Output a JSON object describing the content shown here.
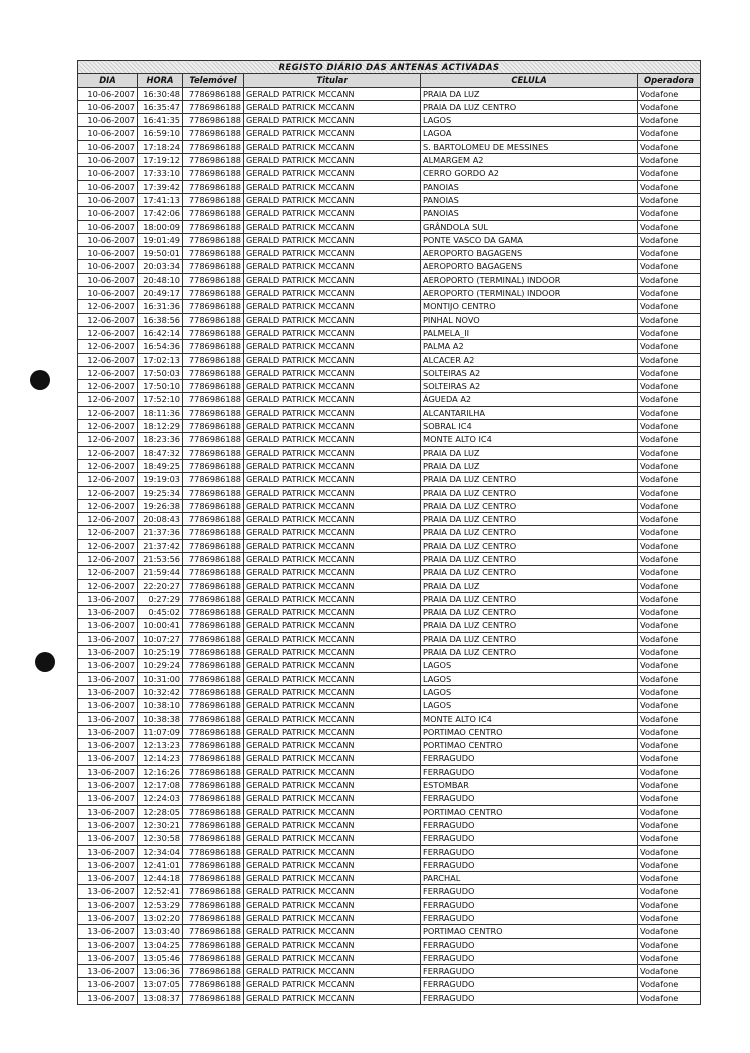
{
  "table": {
    "title": "REGISTO DIÁRIO DAS ANTENAS ACTIVADAS",
    "headers": [
      "DIA",
      "HORA",
      "Telemóvel",
      "Titular",
      "CELULA",
      "Operadora"
    ],
    "rows": [
      [
        "10-06-2007",
        "16:30:48",
        "7786986188",
        "GERALD PATRICK MCCANN",
        "PRAIA DA LUZ",
        "Vodafone"
      ],
      [
        "10-06-2007",
        "16:35:47",
        "7786986188",
        "GERALD PATRICK MCCANN",
        "PRAIA DA LUZ CENTRO",
        "Vodafone"
      ],
      [
        "10-06-2007",
        "16:41:35",
        "7786986188",
        "GERALD PATRICK MCCANN",
        "LAGOS",
        "Vodafone"
      ],
      [
        "10-06-2007",
        "16:59:10",
        "7786986188",
        "GERALD PATRICK MCCANN",
        "LAGOA",
        "Vodafone"
      ],
      [
        "10-06-2007",
        "17:18:24",
        "7786986188",
        "GERALD PATRICK MCCANN",
        "S. BARTOLOMEU DE MESSINES",
        "Vodafone"
      ],
      [
        "10-06-2007",
        "17:19:12",
        "7786986188",
        "GERALD PATRICK MCCANN",
        "ALMARGEM A2",
        "Vodafone"
      ],
      [
        "10-06-2007",
        "17:33:10",
        "7786986188",
        "GERALD PATRICK MCCANN",
        "CERRO GORDO A2",
        "Vodafone"
      ],
      [
        "10-06-2007",
        "17:39:42",
        "7786986188",
        "GERALD PATRICK MCCANN",
        "PANOIAS",
        "Vodafone"
      ],
      [
        "10-06-2007",
        "17:41:13",
        "7786986188",
        "GERALD PATRICK MCCANN",
        "PANOIAS",
        "Vodafone"
      ],
      [
        "10-06-2007",
        "17:42:06",
        "7786986188",
        "GERALD PATRICK MCCANN",
        "PANOIAS",
        "Vodafone"
      ],
      [
        "10-06-2007",
        "18:00:09",
        "7786986188",
        "GERALD PATRICK MCCANN",
        "GRÂNDOLA SUL",
        "Vodafone"
      ],
      [
        "10-06-2007",
        "19:01:49",
        "7786986188",
        "GERALD PATRICK MCCANN",
        "PONTE VASCO DA GAMA",
        "Vodafone"
      ],
      [
        "10-06-2007",
        "19:50:01",
        "7786986188",
        "GERALD PATRICK MCCANN",
        "AEROPORTO BAGAGENS",
        "Vodafone"
      ],
      [
        "10-06-2007",
        "20:03:34",
        "7786986188",
        "GERALD PATRICK MCCANN",
        "AEROPORTO BAGAGENS",
        "Vodafone"
      ],
      [
        "10-06-2007",
        "20:48:10",
        "7786986188",
        "GERALD PATRICK MCCANN",
        "AEROPORTO (TERMINAL) INDOOR",
        "Vodafone"
      ],
      [
        "10-06-2007",
        "20:49:17",
        "7786986188",
        "GERALD PATRICK MCCANN",
        "AEROPORTO (TERMINAL) INDOOR",
        "Vodafone"
      ],
      [
        "12-06-2007",
        "16:31:36",
        "7786986188",
        "GERALD PATRICK MCCANN",
        "MONTIJO CENTRO",
        "Vodafone"
      ],
      [
        "12-06-2007",
        "16:38:56",
        "7786986188",
        "GERALD PATRICK MCCANN",
        "PINHAL NOVO",
        "Vodafone"
      ],
      [
        "12-06-2007",
        "16:42:14",
        "7786986188",
        "GERALD PATRICK MCCANN",
        "PALMELA_II",
        "Vodafone"
      ],
      [
        "12-06-2007",
        "16:54:36",
        "7786986188",
        "GERALD PATRICK MCCANN",
        "PALMA A2",
        "Vodafone"
      ],
      [
        "12-06-2007",
        "17:02:13",
        "7786986188",
        "GERALD PATRICK MCCANN",
        "ALCACER A2",
        "Vodafone"
      ],
      [
        "12-06-2007",
        "17:50:03",
        "7786986188",
        "GERALD PATRICK MCCANN",
        "SOLTEIRAS A2",
        "Vodafone"
      ],
      [
        "12-06-2007",
        "17:50:10",
        "7786986188",
        "GERALD PATRICK MCCANN",
        "SOLTEIRAS A2",
        "Vodafone"
      ],
      [
        "12-06-2007",
        "17:52:10",
        "7786986188",
        "GERALD PATRICK MCCANN",
        "ÁGUEDA A2",
        "Vodafone"
      ],
      [
        "12-06-2007",
        "18:11:36",
        "7786986188",
        "GERALD PATRICK MCCANN",
        "ALCANTARILHA",
        "Vodafone"
      ],
      [
        "12-06-2007",
        "18:12:29",
        "7786986188",
        "GERALD PATRICK MCCANN",
        "SOBRAL IC4",
        "Vodafone"
      ],
      [
        "12-06-2007",
        "18:23:36",
        "7786986188",
        "GERALD PATRICK MCCANN",
        "MONTE ALTO IC4",
        "Vodafone"
      ],
      [
        "12-06-2007",
        "18:47:32",
        "7786986188",
        "GERALD PATRICK MCCANN",
        "PRAIA DA LUZ",
        "Vodafone"
      ],
      [
        "12-06-2007",
        "18:49:25",
        "7786986188",
        "GERALD PATRICK MCCANN",
        "PRAIA DA LUZ",
        "Vodafone"
      ],
      [
        "12-06-2007",
        "19:19:03",
        "7786986188",
        "GERALD PATRICK MCCANN",
        "PRAIA DA LUZ CENTRO",
        "Vodafone"
      ],
      [
        "12-06-2007",
        "19:25:34",
        "7786986188",
        "GERALD PATRICK MCCANN",
        "PRAIA DA LUZ CENTRO",
        "Vodafone"
      ],
      [
        "12-06-2007",
        "19:26:38",
        "7786986188",
        "GERALD PATRICK MCCANN",
        "PRAIA DA LUZ CENTRO",
        "Vodafone"
      ],
      [
        "12-06-2007",
        "20:08:43",
        "7786986188",
        "GERALD PATRICK MCCANN",
        "PRAIA DA LUZ CENTRO",
        "Vodafone"
      ],
      [
        "12-06-2007",
        "21:37:36",
        "7786986188",
        "GERALD PATRICK MCCANN",
        "PRAIA DA LUZ CENTRO",
        "Vodafone"
      ],
      [
        "12-06-2007",
        "21:37:42",
        "7786986188",
        "GERALD PATRICK MCCANN",
        "PRAIA DA LUZ CENTRO",
        "Vodafone"
      ],
      [
        "12-06-2007",
        "21:53:56",
        "7786986188",
        "GERALD PATRICK MCCANN",
        "PRAIA DA LUZ CENTRO",
        "Vodafone"
      ],
      [
        "12-06-2007",
        "21:59:44",
        "7786986188",
        "GERALD PATRICK MCCANN",
        "PRAIA DA LUZ CENTRO",
        "Vodafone"
      ],
      [
        "12-06-2007",
        "22:20:27",
        "7786986188",
        "GERALD PATRICK MCCANN",
        "PRAIA DA LUZ",
        "Vodafone"
      ],
      [
        "13-06-2007",
        "0:27:29",
        "7786986188",
        "GERALD PATRICK MCCANN",
        "PRAIA DA LUZ CENTRO",
        "Vodafone"
      ],
      [
        "13-06-2007",
        "0:45:02",
        "7786986188",
        "GERALD PATRICK MCCANN",
        "PRAIA DA LUZ CENTRO",
        "Vodafone"
      ],
      [
        "13-06-2007",
        "10:00:41",
        "7786986188",
        "GERALD PATRICK MCCANN",
        "PRAIA DA LUZ CENTRO",
        "Vodafone"
      ],
      [
        "13-06-2007",
        "10:07:27",
        "7786986188",
        "GERALD PATRICK MCCANN",
        "PRAIA DA LUZ CENTRO",
        "Vodafone"
      ],
      [
        "13-06-2007",
        "10:25:19",
        "7786986188",
        "GERALD PATRICK MCCANN",
        "PRAIA DA LUZ CENTRO",
        "Vodafone"
      ],
      [
        "13-06-2007",
        "10:29:24",
        "7786986188",
        "GERALD PATRICK MCCANN",
        "LAGOS",
        "Vodafone"
      ],
      [
        "13-06-2007",
        "10:31:00",
        "7786986188",
        "GERALD PATRICK MCCANN",
        "LAGOS",
        "Vodafone"
      ],
      [
        "13-06-2007",
        "10:32:42",
        "7786986188",
        "GERALD PATRICK MCCANN",
        "LAGOS",
        "Vodafone"
      ],
      [
        "13-06-2007",
        "10:38:10",
        "7786986188",
        "GERALD PATRICK MCCANN",
        "LAGOS",
        "Vodafone"
      ],
      [
        "13-06-2007",
        "10:38:38",
        "7786986188",
        "GERALD PATRICK MCCANN",
        "MONTE ALTO IC4",
        "Vodafone"
      ],
      [
        "13-06-2007",
        "11:07:09",
        "7786986188",
        "GERALD PATRICK MCCANN",
        "PORTIMAO CENTRO",
        "Vodafone"
      ],
      [
        "13-06-2007",
        "12:13:23",
        "7786986188",
        "GERALD PATRICK MCCANN",
        "PORTIMAO CENTRO",
        "Vodafone"
      ],
      [
        "13-06-2007",
        "12:14:23",
        "7786986188",
        "GERALD PATRICK MCCANN",
        "FERRAGUDO",
        "Vodafone"
      ],
      [
        "13-06-2007",
        "12:16:26",
        "7786986188",
        "GERALD PATRICK MCCANN",
        "FERRAGUDO",
        "Vodafone"
      ],
      [
        "13-06-2007",
        "12:17:08",
        "7786986188",
        "GERALD PATRICK MCCANN",
        "ESTOMBAR",
        "Vodafone"
      ],
      [
        "13-06-2007",
        "12:24:03",
        "7786986188",
        "GERALD PATRICK MCCANN",
        "FERRAGUDO",
        "Vodafone"
      ],
      [
        "13-06-2007",
        "12:28:05",
        "7786986188",
        "GERALD PATRICK MCCANN",
        "PORTIMAO CENTRO",
        "Vodafone"
      ],
      [
        "13-06-2007",
        "12:30:21",
        "7786986188",
        "GERALD PATRICK MCCANN",
        "FERRAGUDO",
        "Vodafone"
      ],
      [
        "13-06-2007",
        "12:30:58",
        "7786986188",
        "GERALD PATRICK MCCANN",
        "FERRAGUDO",
        "Vodafone"
      ],
      [
        "13-06-2007",
        "12:34:04",
        "7786986188",
        "GERALD PATRICK MCCANN",
        "FERRAGUDO",
        "Vodafone"
      ],
      [
        "13-06-2007",
        "12:41:01",
        "7786986188",
        "GERALD PATRICK MCCANN",
        "FERRAGUDO",
        "Vodafone"
      ],
      [
        "13-06-2007",
        "12:44:18",
        "7786986188",
        "GERALD PATRICK MCCANN",
        "PARCHAL",
        "Vodafone"
      ],
      [
        "13-06-2007",
        "12:52:41",
        "7786986188",
        "GERALD PATRICK MCCANN",
        "FERRAGUDO",
        "Vodafone"
      ],
      [
        "13-06-2007",
        "12:53:29",
        "7786986188",
        "GERALD PATRICK MCCANN",
        "FERRAGUDO",
        "Vodafone"
      ],
      [
        "13-06-2007",
        "13:02:20",
        "7786986188",
        "GERALD PATRICK MCCANN",
        "FERRAGUDO",
        "Vodafone"
      ],
      [
        "13-06-2007",
        "13:03:40",
        "7786986188",
        "GERALD PATRICK MCCANN",
        "PORTIMAO CENTRO",
        "Vodafone"
      ],
      [
        "13-06-2007",
        "13:04:25",
        "7786986188",
        "GERALD PATRICK MCCANN",
        "FERRAGUDO",
        "Vodafone"
      ],
      [
        "13-06-2007",
        "13:05:46",
        "7786986188",
        "GERALD PATRICK MCCANN",
        "FERRAGUDO",
        "Vodafone"
      ],
      [
        "13-06-2007",
        "13:06:36",
        "7786986188",
        "GERALD PATRICK MCCANN",
        "FERRAGUDO",
        "Vodafone"
      ],
      [
        "13-06-2007",
        "13:07:05",
        "7786986188",
        "GERALD PATRICK MCCANN",
        "FERRAGUDO",
        "Vodafone"
      ],
      [
        "13-06-2007",
        "13:08:37",
        "7786986188",
        "GERALD PATRICK MCCANN",
        "FERRAGUDO",
        "Vodafone"
      ]
    ]
  }
}
